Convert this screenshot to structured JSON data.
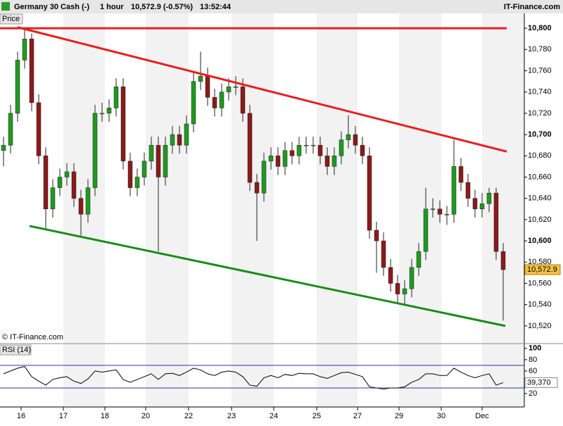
{
  "header": {
    "instrument": "Germany 30 Cash (-)",
    "interval": "1 hour",
    "quote": "10,572.9 (-0.57%)",
    "time": "13:52:44",
    "site": "IT-Finance.com"
  },
  "chart_data": [
    {
      "type": "candlestick",
      "panel_label": "Price",
      "copyright": "© IT-Finance.com",
      "series": [
        {
          "name": "Germany 30 Cash",
          "open": [
            10685,
            10690,
            10720,
            10770,
            10790,
            10730,
            10680,
            10630,
            10650,
            10660,
            10665,
            10640,
            10625,
            10650,
            10720,
            10720,
            10725,
            10745,
            10675,
            10650,
            10660,
            10675,
            10690,
            10660,
            10690,
            10700,
            10690,
            10710,
            10750,
            10755,
            10735,
            10725,
            10740,
            10745,
            10745,
            10720,
            10655,
            10645,
            10675,
            10680,
            10670,
            10685,
            10680,
            10690,
            10690,
            10690,
            10680,
            10670,
            10680,
            10695,
            10700,
            10690,
            10680,
            10610,
            10600,
            10575,
            10560,
            10550,
            10555,
            10575,
            10590,
            10630,
            10630,
            10625,
            10625,
            10670,
            10655,
            10640,
            10630,
            10635,
            10645,
            10590
          ],
          "high": [
            10698,
            10728,
            10778,
            10800,
            10795,
            10738,
            10688,
            10658,
            10668,
            10673,
            10673,
            10648,
            10658,
            10728,
            10730,
            10733,
            10753,
            10753,
            10683,
            10668,
            10683,
            10698,
            10698,
            10698,
            10708,
            10708,
            10718,
            10758,
            10778,
            10763,
            10743,
            10748,
            10753,
            10755,
            10753,
            10728,
            10663,
            10683,
            10688,
            10688,
            10693,
            10693,
            10698,
            10698,
            10698,
            10698,
            10688,
            10688,
            10703,
            10718,
            10708,
            10698,
            10688,
            10618,
            10608,
            10583,
            10568,
            10563,
            10583,
            10598,
            10650,
            10640,
            10638,
            10633,
            10695,
            10678,
            10663,
            10648,
            10645,
            10650,
            10650,
            10598
          ],
          "low": [
            10670,
            10682,
            10712,
            10762,
            10722,
            10672,
            10610,
            10622,
            10642,
            10652,
            10632,
            10605,
            10617,
            10642,
            10712,
            10712,
            10717,
            10667,
            10642,
            10642,
            10652,
            10667,
            10590,
            10652,
            10682,
            10682,
            10682,
            10702,
            10742,
            10727,
            10717,
            10717,
            10732,
            10737,
            10712,
            10647,
            10600,
            10637,
            10667,
            10662,
            10662,
            10672,
            10672,
            10682,
            10682,
            10672,
            10662,
            10662,
            10672,
            10687,
            10682,
            10672,
            10602,
            10570,
            10567,
            10552,
            10542,
            10540,
            10547,
            10567,
            10582,
            10622,
            10617,
            10615,
            10617,
            10647,
            10632,
            10622,
            10622,
            10627,
            10582,
            10525
          ],
          "close": [
            10690,
            10720,
            10770,
            10790,
            10730,
            10680,
            10630,
            10650,
            10660,
            10665,
            10640,
            10625,
            10650,
            10720,
            10720,
            10725,
            10745,
            10675,
            10650,
            10660,
            10675,
            10690,
            10660,
            10690,
            10700,
            10690,
            10710,
            10750,
            10755,
            10735,
            10725,
            10740,
            10745,
            10745,
            10720,
            10655,
            10645,
            10675,
            10680,
            10670,
            10685,
            10680,
            10690,
            10690,
            10690,
            10680,
            10670,
            10680,
            10695,
            10700,
            10690,
            10680,
            10610,
            10600,
            10575,
            10560,
            10550,
            10555,
            10575,
            10590,
            10630,
            10630,
            10625,
            10625,
            10670,
            10655,
            10640,
            10630,
            10635,
            10645,
            10590,
            10572.9
          ],
          "up_color": "#1f9a1f",
          "down_color": "#8b1a1a",
          "last_label": "10,572.9"
        }
      ],
      "xlim": [
        -0.5,
        74
      ],
      "xticks": [
        {
          "value": 2.5,
          "label": "16"
        },
        {
          "value": 8.5,
          "label": "17"
        },
        {
          "value": 14.4,
          "label": "18"
        },
        {
          "value": 20.2,
          "label": "20"
        },
        {
          "value": 26.3,
          "label": "22"
        },
        {
          "value": 32.4,
          "label": "23"
        },
        {
          "value": 38.4,
          "label": "24"
        },
        {
          "value": 44.5,
          "label": "25"
        },
        {
          "value": 50.3,
          "label": "27"
        },
        {
          "value": 56.2,
          "label": "29"
        },
        {
          "value": 62.2,
          "label": "30"
        },
        {
          "value": 68,
          "label": "Dec"
        }
      ],
      "ylim": [
        10504,
        10814
      ],
      "yticks": [
        {
          "value": 10520,
          "label": "10,520"
        },
        {
          "value": 10540,
          "label": "10,540"
        },
        {
          "value": 10560,
          "label": "10,560"
        },
        {
          "value": 10580,
          "label": "10,580"
        },
        {
          "value": 10600,
          "label": "10,600"
        },
        {
          "value": 10620,
          "label": "10,620"
        },
        {
          "value": 10640,
          "label": "10,640"
        },
        {
          "value": 10660,
          "label": "10,660"
        },
        {
          "value": 10680,
          "label": "10,680"
        },
        {
          "value": 10700,
          "label": "10,700"
        },
        {
          "value": 10720,
          "label": "10,720"
        },
        {
          "value": 10740,
          "label": "10,740"
        },
        {
          "value": 10760,
          "label": "10,760"
        },
        {
          "value": 10780,
          "label": "10,780"
        },
        {
          "value": 10800,
          "label": "10,800"
        }
      ],
      "trend_lines": [
        {
          "color": "#e82020",
          "x": [
            -0.5,
            71.5
          ],
          "y": [
            10800,
            10800
          ]
        },
        {
          "color": "#e82020",
          "x": [
            2,
            71.5
          ],
          "y": [
            10801,
            10684
          ]
        },
        {
          "color": "#1a8a1a",
          "x": [
            3.7,
            71.3
          ],
          "y": [
            10614,
            10520
          ]
        }
      ]
    },
    {
      "type": "line",
      "panel_label": "RSI (14)",
      "series": [
        {
          "name": "RSI (14)",
          "color": "#000000",
          "values": [
            55,
            60,
            65,
            68,
            50,
            42,
            35,
            45,
            48,
            50,
            42,
            38,
            46,
            60,
            58,
            60,
            62,
            45,
            40,
            45,
            50,
            55,
            45,
            55,
            56,
            52,
            58,
            65,
            62,
            55,
            52,
            58,
            60,
            58,
            50,
            35,
            33,
            48,
            52,
            48,
            54,
            52,
            56,
            55,
            55,
            50,
            47,
            52,
            57,
            58,
            54,
            50,
            32,
            30,
            28,
            30,
            30,
            32,
            40,
            45,
            55,
            55,
            52,
            52,
            65,
            58,
            52,
            48,
            52,
            55,
            35,
            39.37
          ],
          "last_label": "39,370"
        }
      ],
      "levels": [
        30,
        70
      ],
      "level_color": "#3030a0",
      "ylim": [
        0,
        106
      ],
      "yticks": [
        20,
        40,
        60,
        80,
        100
      ]
    }
  ]
}
